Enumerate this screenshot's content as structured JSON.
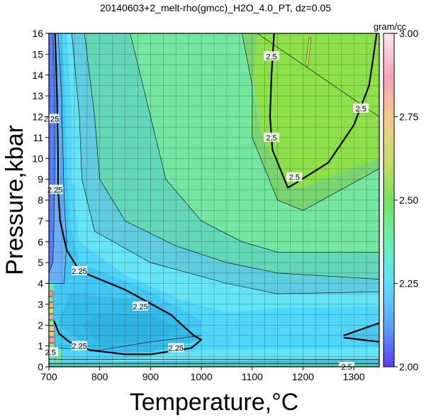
{
  "chart_data": {
    "type": "heatmap",
    "title": "20140603+2_melt-rho(gmcc)_H2O_4.0_PT, dz=0.05",
    "xlabel": "Temperature,°C",
    "ylabel": "Pressure,kbar",
    "xlim": [
      700,
      1350
    ],
    "ylim": [
      0,
      16
    ],
    "x_ticks": [
      700,
      800,
      900,
      1000,
      1100,
      1200,
      1300
    ],
    "y_ticks": [
      0,
      1,
      2,
      3,
      4,
      5,
      6,
      7,
      8,
      9,
      10,
      11,
      12,
      13,
      14,
      15,
      16
    ],
    "grid": true,
    "colorbar": {
      "unit": "gram/cc",
      "range": [
        2.0,
        3.0
      ],
      "ticks": [
        "2.00",
        "2.25",
        "2.50",
        "2.75",
        "3.00"
      ]
    },
    "contour_interval": 0.05,
    "contour_labels": [
      {
        "text": "2.25",
        "t": 705,
        "p": 11.9
      },
      {
        "text": "2.25",
        "t": 712,
        "p": 8.5
      },
      {
        "text": "2.25",
        "t": 760,
        "p": 4.6
      },
      {
        "text": "2.25",
        "t": 880,
        "p": 2.9
      },
      {
        "text": "2.25",
        "t": 760,
        "p": 1.0
      },
      {
        "text": "2.25",
        "t": 950,
        "p": 0.9
      },
      {
        "text": "2.5",
        "t": 1138,
        "p": 14.9
      },
      {
        "text": "2.5",
        "t": 1138,
        "p": 11.0
      },
      {
        "text": "2.5",
        "t": 1183,
        "p": 9.1
      },
      {
        "text": "2.5",
        "t": 1314,
        "p": 12.4
      },
      {
        "text": "2.5",
        "t": 703,
        "p": 0.7
      },
      {
        "text": "2.5",
        "t": 1286,
        "p": 0.0
      }
    ]
  }
}
